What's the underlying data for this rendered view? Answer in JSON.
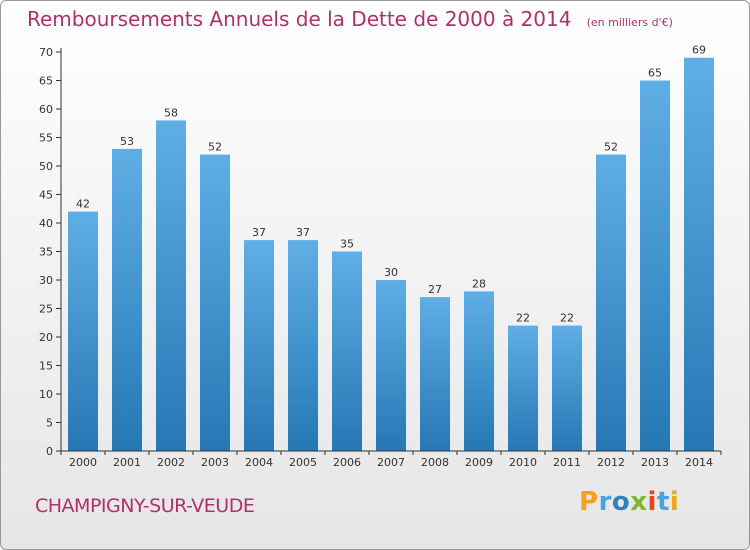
{
  "chart_data": {
    "type": "bar",
    "title": "Remboursements Annuels de la Dette de 2000 à 2014",
    "unit": "(en milliers d'€)",
    "categories": [
      "2000",
      "2001",
      "2002",
      "2003",
      "2004",
      "2005",
      "2006",
      "2007",
      "2008",
      "2009",
      "2010",
      "2011",
      "2012",
      "2013",
      "2014"
    ],
    "values": [
      42,
      53,
      58,
      52,
      37,
      37,
      35,
      30,
      27,
      28,
      22,
      22,
      52,
      65,
      69
    ],
    "ylim": [
      0,
      70
    ],
    "yticks": [
      0,
      5,
      10,
      15,
      20,
      25,
      30,
      35,
      40,
      45,
      50,
      55,
      60,
      65,
      70
    ],
    "xlabel": "",
    "ylabel": "",
    "grid": false
  },
  "footer": {
    "city": "CHAMPIGNY-SUR-VEUDE",
    "brand": [
      "P",
      "r",
      "o",
      "x",
      "i",
      "t",
      "i"
    ]
  },
  "colors": {
    "title": "#b0306a",
    "bar_top": "#5faee6",
    "bar_bottom": "#2677b4",
    "axis": "#333333",
    "brand": [
      "#f2a21b",
      "#4ba3db",
      "#2f7fc3",
      "#7cb92a",
      "#e8441c",
      "#4ba3db",
      "#f2a21b"
    ]
  }
}
